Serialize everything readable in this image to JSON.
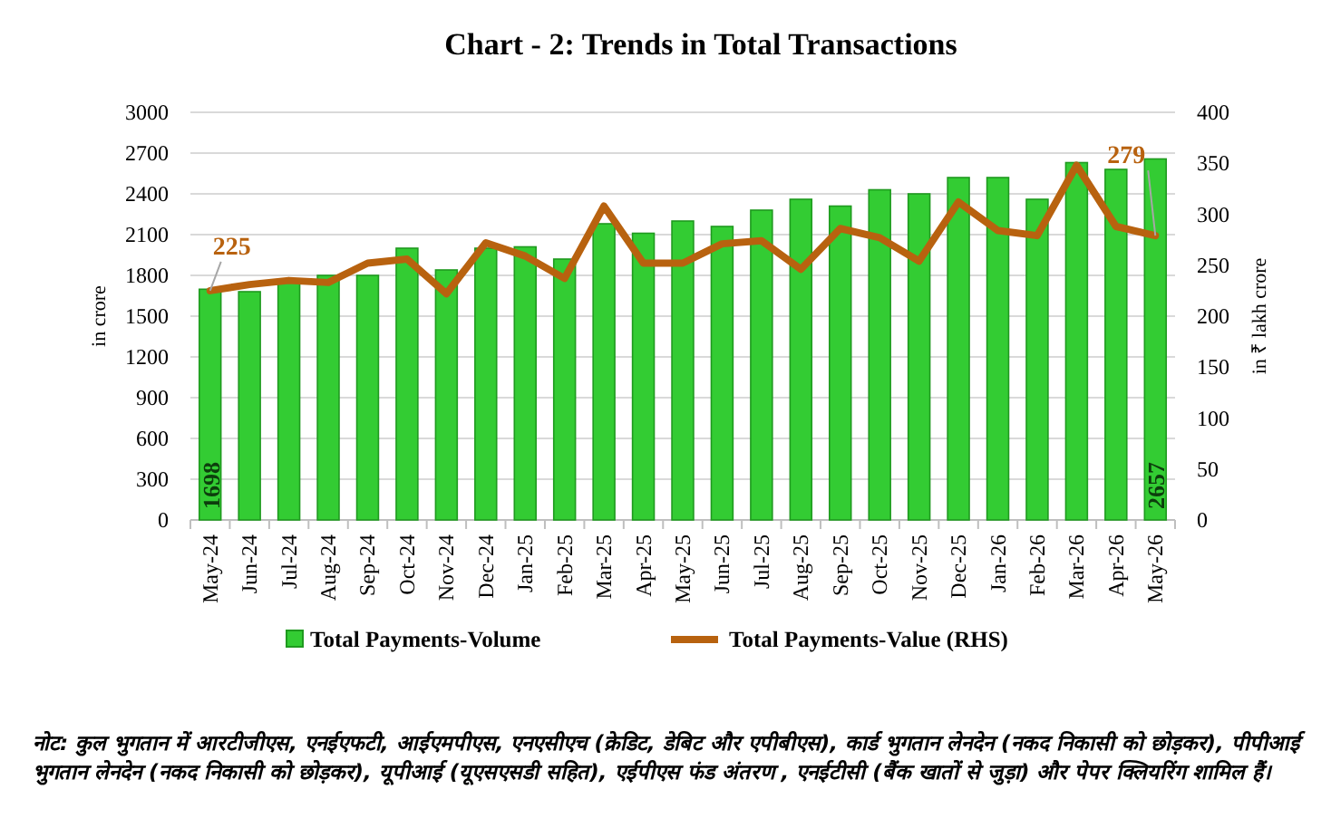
{
  "chart_data": {
    "type": "bar",
    "title": "Chart - 2: Trends in Total Transactions",
    "categories": [
      "May-24",
      "Jun-24",
      "Jul-24",
      "Aug-24",
      "Sep-24",
      "Oct-24",
      "Nov-24",
      "Dec-24",
      "Jan-25",
      "Feb-25",
      "Mar-25",
      "Apr-25",
      "May-25",
      "Jun-25",
      "Jul-25",
      "Aug-25",
      "Sep-25",
      "Oct-25",
      "Nov-25",
      "Dec-25",
      "Jan-26",
      "Feb-26",
      "Mar-26",
      "Apr-26",
      "May-26"
    ],
    "series": [
      {
        "name": "Total Payments-Volume",
        "color": "#33cc33",
        "values": [
          1698,
          1680,
          1760,
          1800,
          1800,
          2000,
          1840,
          2000,
          2010,
          1920,
          2180,
          2110,
          2200,
          2160,
          2280,
          2360,
          2310,
          2430,
          2400,
          2520,
          2520,
          2360,
          2630,
          2580,
          2657
        ],
        "value_labels": [
          "1698",
          null,
          null,
          null,
          null,
          null,
          null,
          null,
          null,
          null,
          null,
          null,
          null,
          null,
          null,
          null,
          null,
          null,
          null,
          null,
          null,
          null,
          null,
          null,
          "2657"
        ]
      },
      {
        "name": "Total Payments-Value (RHS)",
        "type": "line",
        "axis": "y2",
        "color": "#b8620f",
        "values": [
          225,
          231,
          235,
          233,
          252,
          256,
          222,
          272,
          259,
          237,
          308,
          252,
          252,
          271,
          274,
          246,
          286,
          277,
          254,
          312,
          284,
          279,
          348,
          288,
          279
        ],
        "value_labels": [
          "225",
          null,
          null,
          null,
          null,
          null,
          null,
          null,
          null,
          null,
          null,
          null,
          null,
          null,
          null,
          null,
          null,
          null,
          null,
          null,
          null,
          null,
          null,
          null,
          "279"
        ]
      }
    ],
    "ylabel": "in crore",
    "y2label": "in ₹ lakh crore",
    "ylim": [
      0,
      3000
    ],
    "yticks": [
      0,
      300,
      600,
      900,
      1200,
      1500,
      1800,
      2100,
      2400,
      2700,
      3000
    ],
    "y2lim": [
      0,
      400
    ],
    "y2ticks": [
      0,
      50,
      100,
      150,
      200,
      250,
      300,
      350,
      400
    ],
    "grid": "y",
    "legend": "bottom",
    "annotations": [
      "नोट: कुल भुगतान में आरटीजीएस, एनईएफटी, आईएमपीएस, एनएसीएच (क्रेडिट, डेबिट और एपीबीएस), कार्ड भुगतान लेनदेन (नकद निकासी को छोड़कर), पीपीआई भुगतान लेनदेन (नकद निकासी को छोड़कर), यूपीआई (यूएसएसडी सहित), एईपीएस फंड अंतरण , एनईटीसी (बैंक खातों से जुड़ा) और पेपर क्लियरिंग शामिल हैं।"
    ]
  }
}
